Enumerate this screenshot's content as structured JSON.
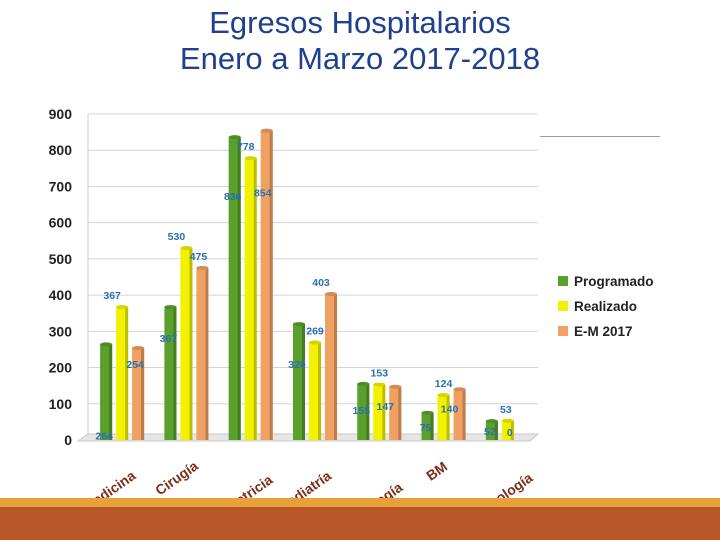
{
  "title_line1": "Egresos Hospitalarios",
  "title_line2": "Enero a Marzo 2017-2018",
  "chart_data": {
    "type": "bar",
    "categories": [
      "Medicina",
      "Cirugía",
      "Obstetricia",
      "Pediatría",
      "Neonatología",
      "BM",
      "Ginecología"
    ],
    "series": [
      {
        "name": "Programado",
        "color": "#5aa02c",
        "values": [
          264,
          367,
          836,
          320,
          155,
          75,
          52
        ],
        "labels": [
          "264",
          "367",
          "836",
          "320",
          "155",
          "75",
          "52"
        ]
      },
      {
        "name": "Realizado",
        "color": "#f2f200",
        "values": [
          367,
          530,
          778,
          269,
          153,
          124,
          53
        ],
        "labels": [
          "367",
          "530",
          "778",
          "269",
          "153",
          "124",
          "53"
        ]
      },
      {
        "name": "E-M 2017",
        "color": "#f0a060",
        "values": [
          254,
          475,
          854,
          403,
          147,
          140,
          0
        ],
        "labels": [
          "254",
          "475",
          "854",
          "403",
          "147",
          "140",
          "0"
        ]
      }
    ],
    "ylim": [
      0,
      900
    ],
    "yticks": [
      "0",
      "100",
      "200",
      "300",
      "400",
      "500",
      "600",
      "700",
      "800",
      "900"
    ],
    "grid": true,
    "legend_position": "right"
  }
}
